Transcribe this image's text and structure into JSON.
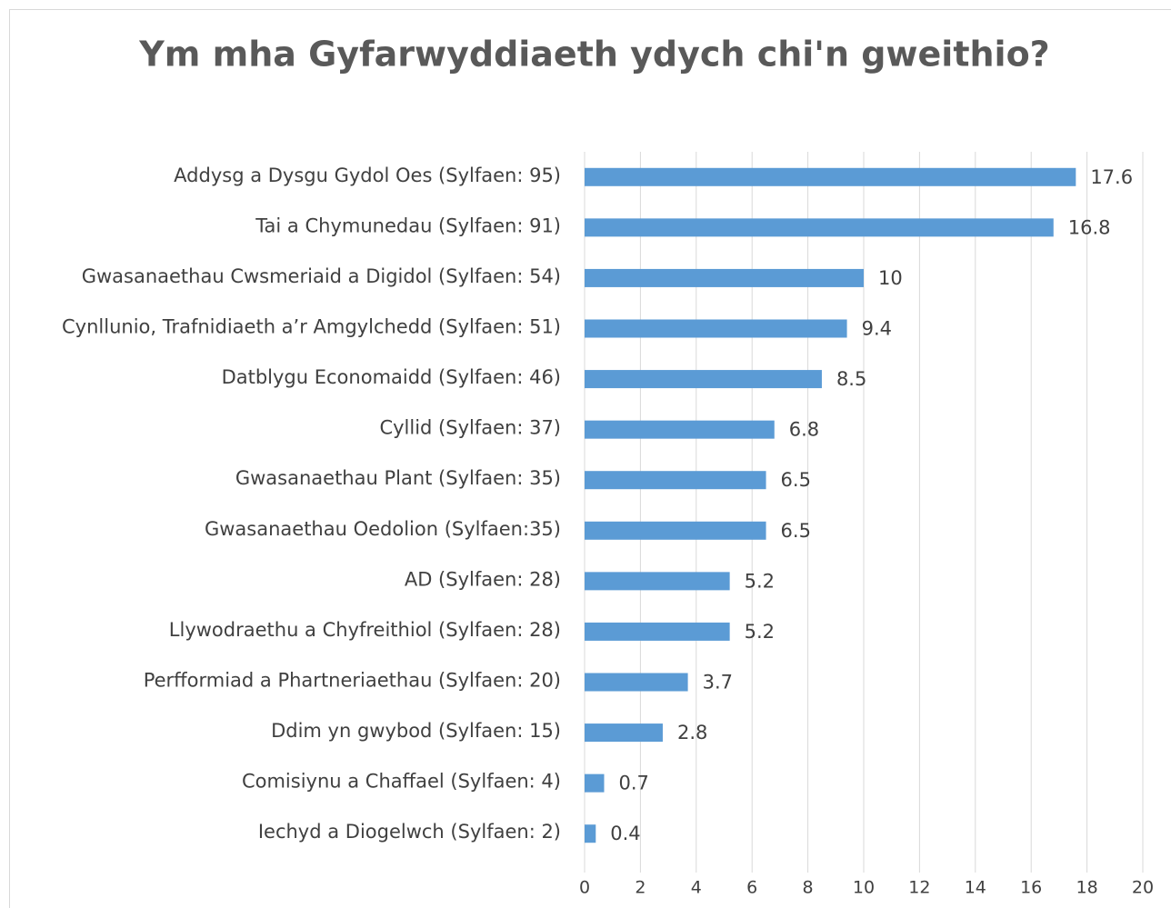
{
  "chart_data": {
    "type": "bar",
    "orientation": "horizontal",
    "title": "Ym mha Gyfarwyddiaeth ydych chi'n gweithio?",
    "categories": [
      "Addysg a Dysgu Gydol Oes (Sylfaen: 95)",
      "Tai a Chymunedau (Sylfaen: 91)",
      "Gwasanaethau Cwsmeriaid a Digidol (Sylfaen: 54)",
      "Cynllunio, Trafnidiaeth a’r Amgylchedd (Sylfaen: 51)",
      "Datblygu Economaidd (Sylfaen: 46)",
      "Cyllid (Sylfaen: 37)",
      "Gwasanaethau Plant (Sylfaen: 35)",
      "Gwasanaethau Oedolion (Sylfaen:35)",
      "AD (Sylfaen: 28)",
      "Llywodraethu a Chyfreithiol (Sylfaen: 28)",
      "Perfformiad a Phartneriaethau (Sylfaen: 20)",
      "Ddim yn gwybod (Sylfaen: 15)",
      "Comisiynu a Chaffael (Sylfaen: 4)",
      "Iechyd a Diogelwch (Sylfaen: 2)"
    ],
    "values": [
      17.6,
      16.8,
      10,
      9.4,
      8.5,
      6.8,
      6.5,
      6.5,
      5.2,
      5.2,
      3.7,
      2.8,
      0.7,
      0.4
    ],
    "color": "#5b9bd5",
    "xlim": [
      0,
      20
    ],
    "xticks": [
      0,
      2,
      4,
      6,
      8,
      10,
      12,
      14,
      16,
      18,
      20
    ],
    "grid": true
  }
}
